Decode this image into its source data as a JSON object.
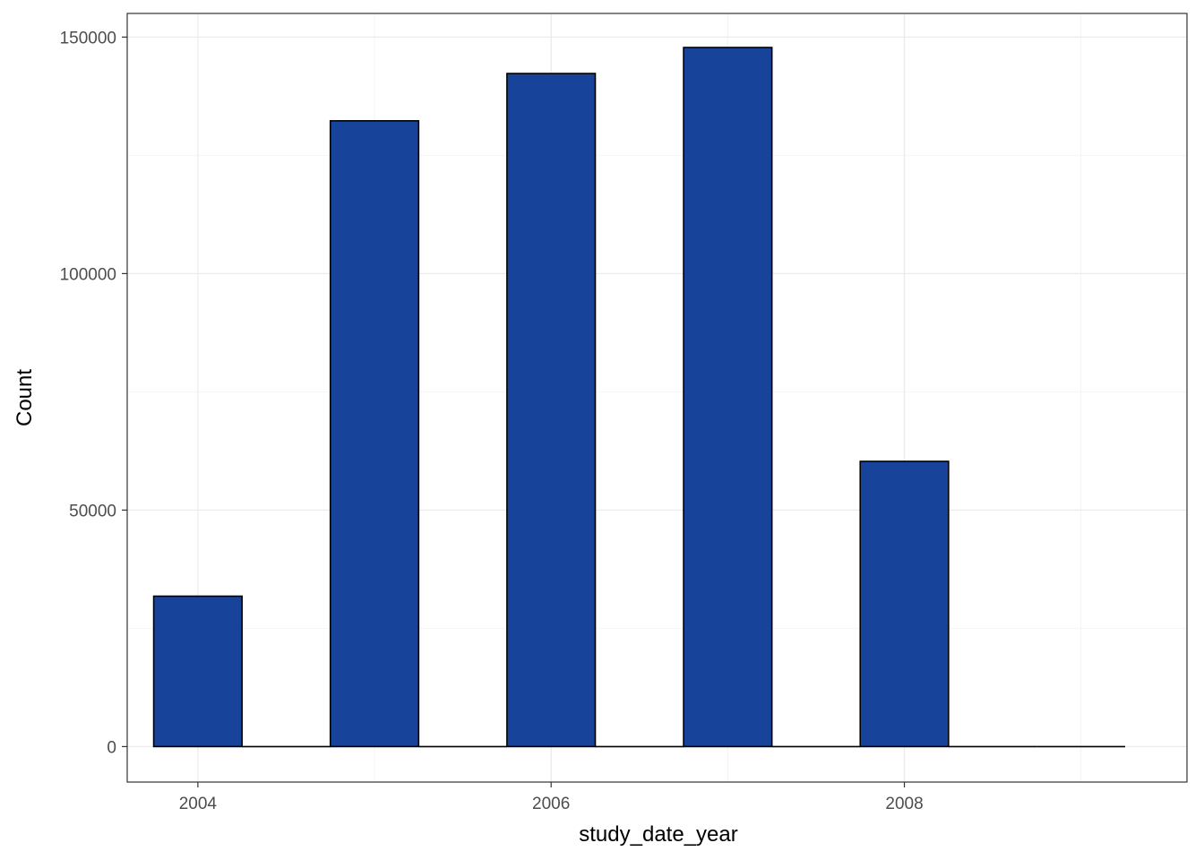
{
  "chart_data": {
    "type": "bar",
    "title": "",
    "xlabel": "study_date_year",
    "ylabel": "Count",
    "xlim": [
      2003.6,
      2009.6
    ],
    "ylim": [
      -7500,
      155000
    ],
    "x_ticks": [
      2004,
      2006,
      2008
    ],
    "x_tick_labels": [
      "2004",
      "2006",
      "2008"
    ],
    "y_ticks": [
      0,
      50000,
      100000,
      150000
    ],
    "y_tick_labels": [
      "0",
      "50000",
      "100000",
      "150000"
    ],
    "bin_width": 0.5,
    "bins": [
      {
        "x": 2004.0,
        "value": 31800
      },
      {
        "x": 2004.5,
        "value": 0
      },
      {
        "x": 2005.0,
        "value": 132300
      },
      {
        "x": 2005.5,
        "value": 0
      },
      {
        "x": 2006.0,
        "value": 142300
      },
      {
        "x": 2006.5,
        "value": 0
      },
      {
        "x": 2007.0,
        "value": 147800
      },
      {
        "x": 2007.5,
        "value": 0
      },
      {
        "x": 2008.0,
        "value": 60300
      },
      {
        "x": 2008.5,
        "value": 0
      },
      {
        "x": 2009.0,
        "value": 0
      }
    ],
    "grid": true,
    "colors": {
      "bar_fill": "#17439a",
      "bar_outline": "#000000",
      "grid_major": "#ebebeb",
      "grid_minor": "#f4f4f4",
      "panel_border": "#333333"
    }
  }
}
